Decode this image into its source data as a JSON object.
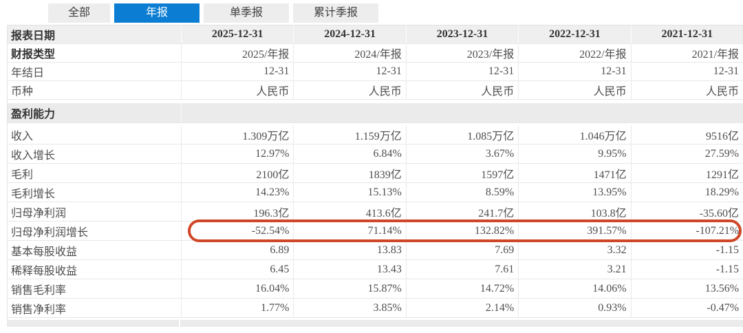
{
  "colors": {
    "accent_blue": "#0b7ed3",
    "highlight_red": "#cf4727",
    "header_bg": "#efefef",
    "section_bg": "#ebebeb"
  },
  "tabs": [
    {
      "id": "all",
      "label": "全部",
      "active": false
    },
    {
      "id": "annual",
      "label": "年报",
      "active": true
    },
    {
      "id": "single-quarter",
      "label": "单季报",
      "active": false
    },
    {
      "id": "cumulative-quarter",
      "label": "累计季报",
      "active": false
    }
  ],
  "table": {
    "header": {
      "label": "报表日期",
      "columns": [
        "2025-12-31",
        "2024-12-31",
        "2023-12-31",
        "2022-12-31",
        "2021-12-31"
      ]
    },
    "info_rows": [
      {
        "label": "财报类型",
        "bold": true,
        "values": [
          "2025/年报",
          "2024/年报",
          "2023/年报",
          "2022/年报",
          "2021/年报"
        ]
      },
      {
        "label": "年结日",
        "bold": false,
        "values": [
          "12-31",
          "12-31",
          "12-31",
          "12-31",
          "12-31"
        ]
      },
      {
        "label": "币种",
        "bold": false,
        "values": [
          "人民币",
          "人民币",
          "人民币",
          "人民币",
          "人民币"
        ]
      }
    ],
    "section_label": "盈利能力",
    "data_rows": [
      {
        "label": "收入",
        "values": [
          "1.309万亿",
          "1.159万亿",
          "1.085万亿",
          "1.046万亿",
          "9516亿"
        ]
      },
      {
        "label": "收入增长",
        "values": [
          "12.97%",
          "6.84%",
          "3.67%",
          "9.95%",
          "27.59%"
        ]
      },
      {
        "label": "毛利",
        "values": [
          "2100亿",
          "1839亿",
          "1597亿",
          "1471亿",
          "1291亿"
        ]
      },
      {
        "label": "毛利增长",
        "values": [
          "14.23%",
          "15.13%",
          "8.59%",
          "13.95%",
          "18.29%"
        ]
      },
      {
        "label": "归母净利润",
        "values": [
          "196.3亿",
          "413.6亿",
          "241.7亿",
          "103.8亿",
          "-35.60亿"
        ]
      },
      {
        "label": "归母净利润增长",
        "highlighted": true,
        "values": [
          "-52.54%",
          "71.14%",
          "132.82%",
          "391.57%",
          "-107.21%"
        ]
      },
      {
        "label": "基本每股收益",
        "values": [
          "6.89",
          "13.83",
          "7.69",
          "3.32",
          "-1.15"
        ]
      },
      {
        "label": "稀释每股收益",
        "values": [
          "6.45",
          "13.43",
          "7.61",
          "3.21",
          "-1.15"
        ]
      },
      {
        "label": "销售毛利率",
        "values": [
          "16.04%",
          "15.87%",
          "14.72%",
          "14.06%",
          "13.56%"
        ]
      },
      {
        "label": "销售净利率",
        "values": [
          "1.77%",
          "3.85%",
          "2.14%",
          "0.93%",
          "-0.47%"
        ]
      }
    ]
  },
  "annotation": {
    "shape": "rounded-oval",
    "color": "#cf4727",
    "target_row": "归母净利润增长"
  }
}
